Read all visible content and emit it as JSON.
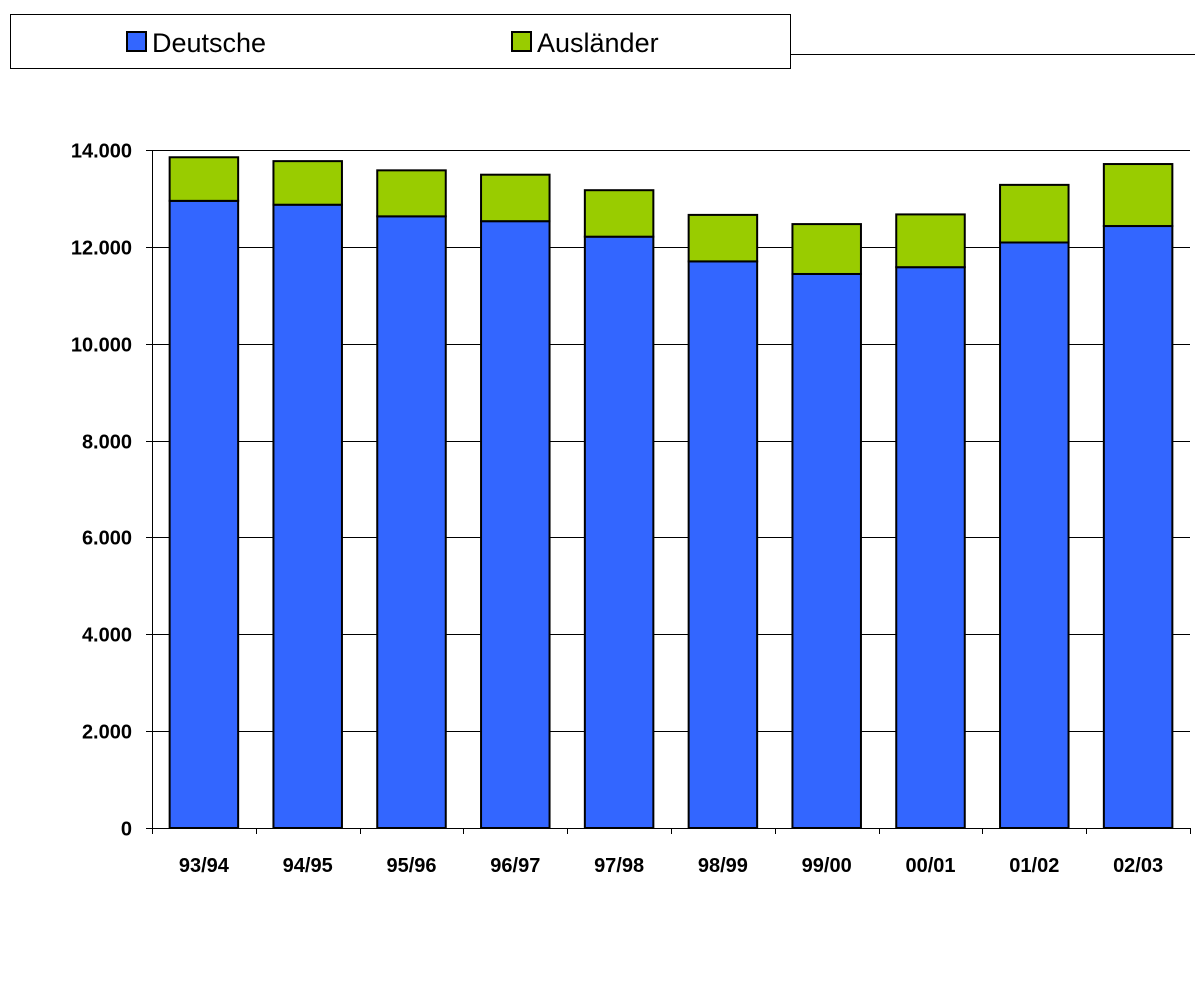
{
  "chart_data": {
    "type": "bar",
    "stacked": true,
    "categories": [
      "93/94",
      "94/95",
      "95/96",
      "96/97",
      "97/98",
      "98/99",
      "99/00",
      "00/01",
      "01/02",
      "02/03"
    ],
    "series": [
      {
        "name": "Deutsche",
        "color": "#3366ff",
        "values": [
          12950,
          12870,
          12630,
          12530,
          12210,
          11700,
          11440,
          11580,
          12090,
          12430
        ]
      },
      {
        "name": "Ausländer",
        "color": "#99cc00",
        "values": [
          900,
          900,
          950,
          960,
          960,
          960,
          1030,
          1090,
          1190,
          1280
        ]
      }
    ],
    "yticks": [
      0,
      2000,
      4000,
      6000,
      8000,
      10000,
      12000,
      14000
    ],
    "ytick_labels": [
      "0",
      "2.000",
      "4.000",
      "6.000",
      "8.000",
      "10.000",
      "12.000",
      "14.000"
    ],
    "ylim": [
      0,
      14000
    ],
    "grid": true,
    "legend_position": "top-left",
    "title": "",
    "xlabel": "",
    "ylabel": ""
  }
}
